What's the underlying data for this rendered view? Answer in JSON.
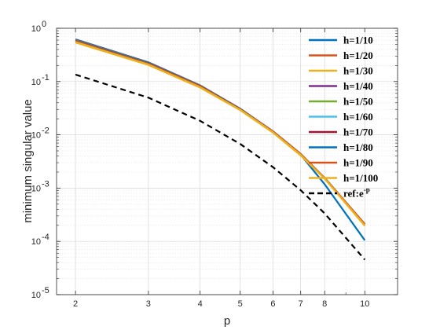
{
  "chart_data": {
    "type": "line",
    "title": "",
    "xlabel": "p",
    "ylabel": "minimum singular value",
    "x_scale": "log",
    "y_scale": "log",
    "xlim": [
      1.8,
      12
    ],
    "ylim": [
      1e-05,
      1
    ],
    "x_ticks": [
      2,
      3,
      4,
      5,
      6,
      7,
      8,
      10
    ],
    "x_tick_labels": [
      "2",
      "3",
      "4",
      "5",
      "6",
      "7",
      "8",
      "10"
    ],
    "y_ticks": [
      1e-05,
      0.0001,
      0.001,
      0.01,
      0.1,
      1
    ],
    "y_tick_labels": [
      {
        "base": "10",
        "exp": "-5"
      },
      {
        "base": "10",
        "exp": "-4"
      },
      {
        "base": "10",
        "exp": "-3"
      },
      {
        "base": "10",
        "exp": "-2"
      },
      {
        "base": "10",
        "exp": "-1"
      },
      {
        "base": "10",
        "exp": "0"
      }
    ],
    "grid": true,
    "minor_grid": true,
    "legend_position": "top-right",
    "x": [
      2,
      3,
      4,
      5,
      6,
      7,
      8,
      10
    ],
    "series": [
      {
        "name": "h=1/10",
        "color": "#0072BD",
        "dash": "solid",
        "values": [
          0.62,
          0.23,
          0.085,
          0.031,
          0.0115,
          0.0042,
          0.00118,
          0.000105
        ]
      },
      {
        "name": "h=1/20",
        "color": "#D95319",
        "dash": "solid",
        "values": [
          0.6,
          0.225,
          0.084,
          0.031,
          0.0117,
          0.0044,
          0.00155,
          0.00021
        ]
      },
      {
        "name": "h=1/30",
        "color": "#EDB120",
        "dash": "solid",
        "values": [
          0.54,
          0.205,
          0.077,
          0.029,
          0.011,
          0.0041,
          0.0015,
          0.000195
        ]
      },
      {
        "name": "h=1/40",
        "color": "#7E2F8E",
        "dash": "solid",
        "values": [
          0.58,
          0.22,
          0.082,
          0.0305,
          0.0115,
          0.0043,
          0.00155,
          0.00021
        ]
      },
      {
        "name": "h=1/50",
        "color": "#77AC30",
        "dash": "solid",
        "values": [
          0.58,
          0.22,
          0.082,
          0.0305,
          0.0115,
          0.0043,
          0.00155,
          0.00021
        ]
      },
      {
        "name": "h=1/60",
        "color": "#4DBEEE",
        "dash": "solid",
        "values": [
          0.58,
          0.22,
          0.082,
          0.0305,
          0.0115,
          0.0043,
          0.00155,
          0.00021
        ]
      },
      {
        "name": "h=1/70",
        "color": "#A2142F",
        "dash": "solid",
        "values": [
          0.58,
          0.22,
          0.082,
          0.0305,
          0.0115,
          0.0043,
          0.00155,
          0.00021
        ]
      },
      {
        "name": "h=1/80",
        "color": "#0072BD",
        "dash": "solid",
        "values": [
          0.58,
          0.22,
          0.082,
          0.0305,
          0.0115,
          0.0043,
          0.00155,
          0.00021
        ]
      },
      {
        "name": "h=1/90",
        "color": "#D95319",
        "dash": "solid",
        "values": [
          0.57,
          0.215,
          0.081,
          0.03,
          0.0114,
          0.0043,
          0.00155,
          0.00021
        ]
      },
      {
        "name": "h=1/100",
        "color": "#EDB120",
        "dash": "solid",
        "values": [
          0.55,
          0.208,
          0.078,
          0.0295,
          0.0112,
          0.0042,
          0.00152,
          0.0002
        ]
      },
      {
        "name": "ref:e",
        "name_superscript": "-p",
        "color": "#000000",
        "dash": "dashed",
        "values": [
          0.1353,
          0.0498,
          0.0183,
          0.00674,
          0.00248,
          0.000912,
          0.000335,
          4.54e-05
        ]
      }
    ]
  }
}
